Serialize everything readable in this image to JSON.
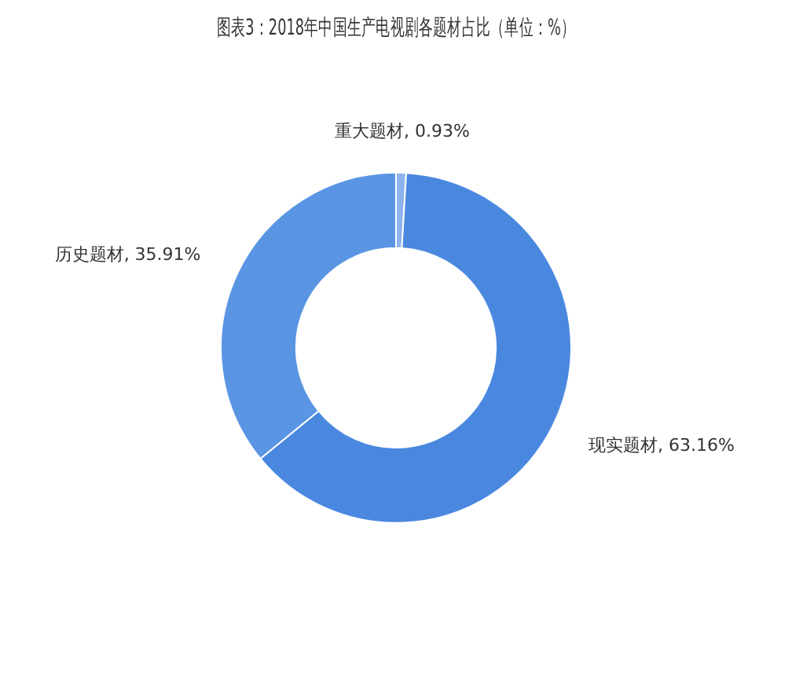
{
  "chart_data": {
    "type": "donut",
    "title": "图表3：2018年中国生产电视剧各题材占比（单位：%）",
    "categories": [
      "重大题材",
      "现实题材",
      "历史题材"
    ],
    "values": [
      0.93,
      63.16,
      35.91
    ],
    "colors": [
      "#8cb3ee",
      "#4a88e0",
      "#5a95e4"
    ],
    "value_labels": [
      "0.93%",
      "63.16%",
      "35.91%"
    ],
    "legend": false
  }
}
